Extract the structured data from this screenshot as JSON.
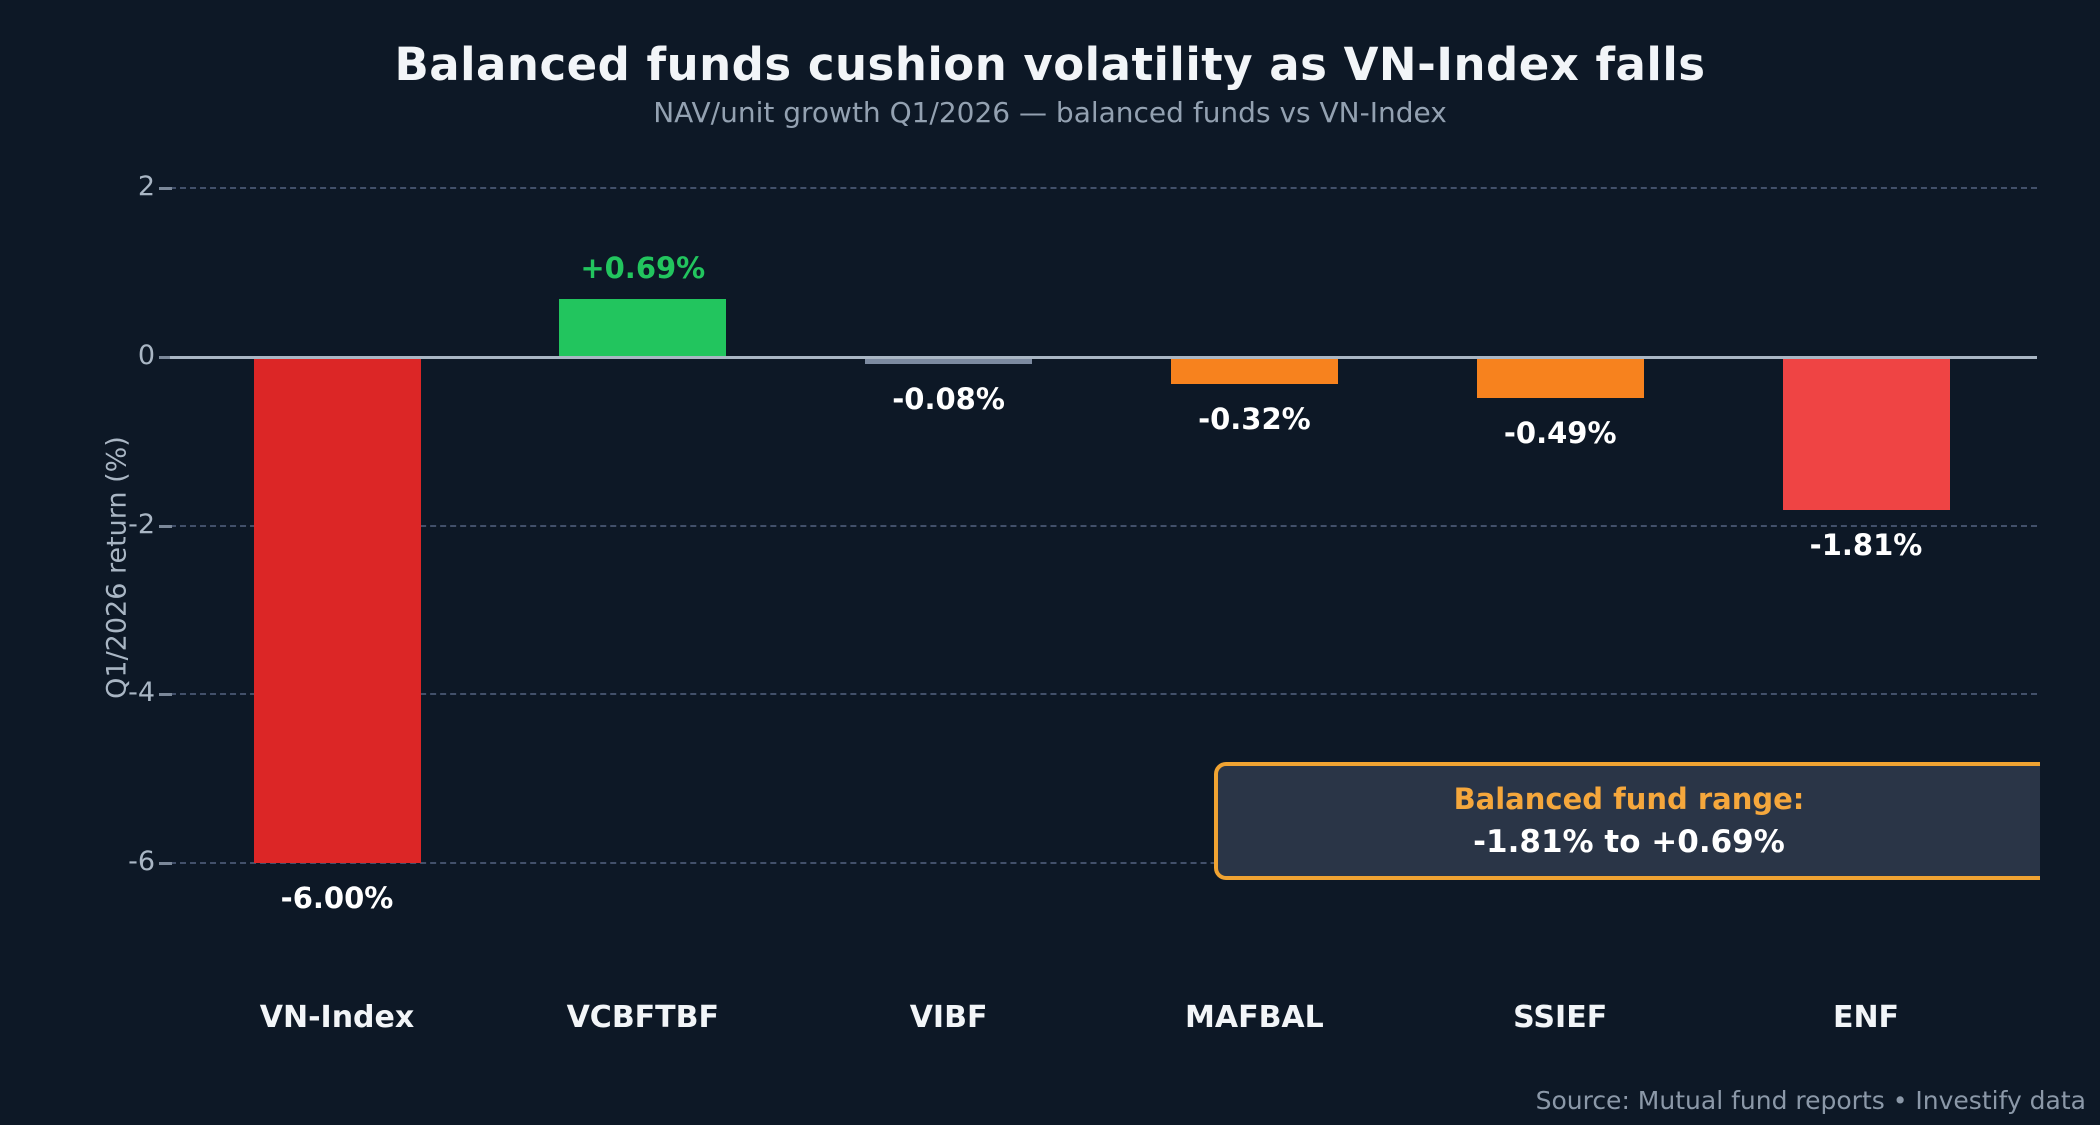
{
  "title": "Balanced funds cushion volatility as VN-Index falls",
  "subtitle": "NAV/unit growth Q1/2026 — balanced funds vs VN-Index",
  "source": "Source: Mutual fund reports • Investify data",
  "annotation": {
    "heading": "Balanced fund range:",
    "range": "-1.81% to +0.69%",
    "border_color": "#f0a332",
    "fill_color": "#2a3547",
    "heading_color": "#f5a73c",
    "range_color": "#ffffff"
  },
  "colors": {
    "background": "#0d1826",
    "title": "#f2f5f8",
    "subtitle": "#93a1b1",
    "axis_text": "#a9b6c4",
    "gridline": "#42506a",
    "zero_line": "#a9b6c4"
  },
  "chart_data": {
    "type": "bar",
    "title": "Balanced funds cushion volatility as VN-Index falls",
    "subtitle": "NAV/unit growth Q1/2026 — balanced funds vs VN-Index",
    "xlabel": "",
    "ylabel": "Q1/2026 return (%)",
    "categories": [
      "VN-Index",
      "VCBFTBF",
      "VIBF",
      "MAFBAL",
      "SSIEF",
      "ENF"
    ],
    "values": [
      -6.0,
      0.69,
      -0.08,
      -0.32,
      -0.49,
      -1.81
    ],
    "value_labels": [
      "-6.00%",
      "+0.69%",
      "-0.08%",
      "-0.32%",
      "-0.49%",
      "-1.81%"
    ],
    "bar_colors": [
      "#dc2626",
      "#22c55e",
      "#7c8aa0",
      "#f7821e",
      "#f7821e",
      "#ef4444"
    ],
    "label_colors": [
      "#ffffff",
      "#22c55e",
      "#ffffff",
      "#ffffff",
      "#ffffff",
      "#ffffff"
    ],
    "yticks": [
      2,
      0,
      -2,
      -4,
      -6
    ],
    "ylim": [
      -6.9,
      2.5
    ],
    "grid": "dashed horizontal gridlines, solid zero line",
    "legend": "none"
  }
}
